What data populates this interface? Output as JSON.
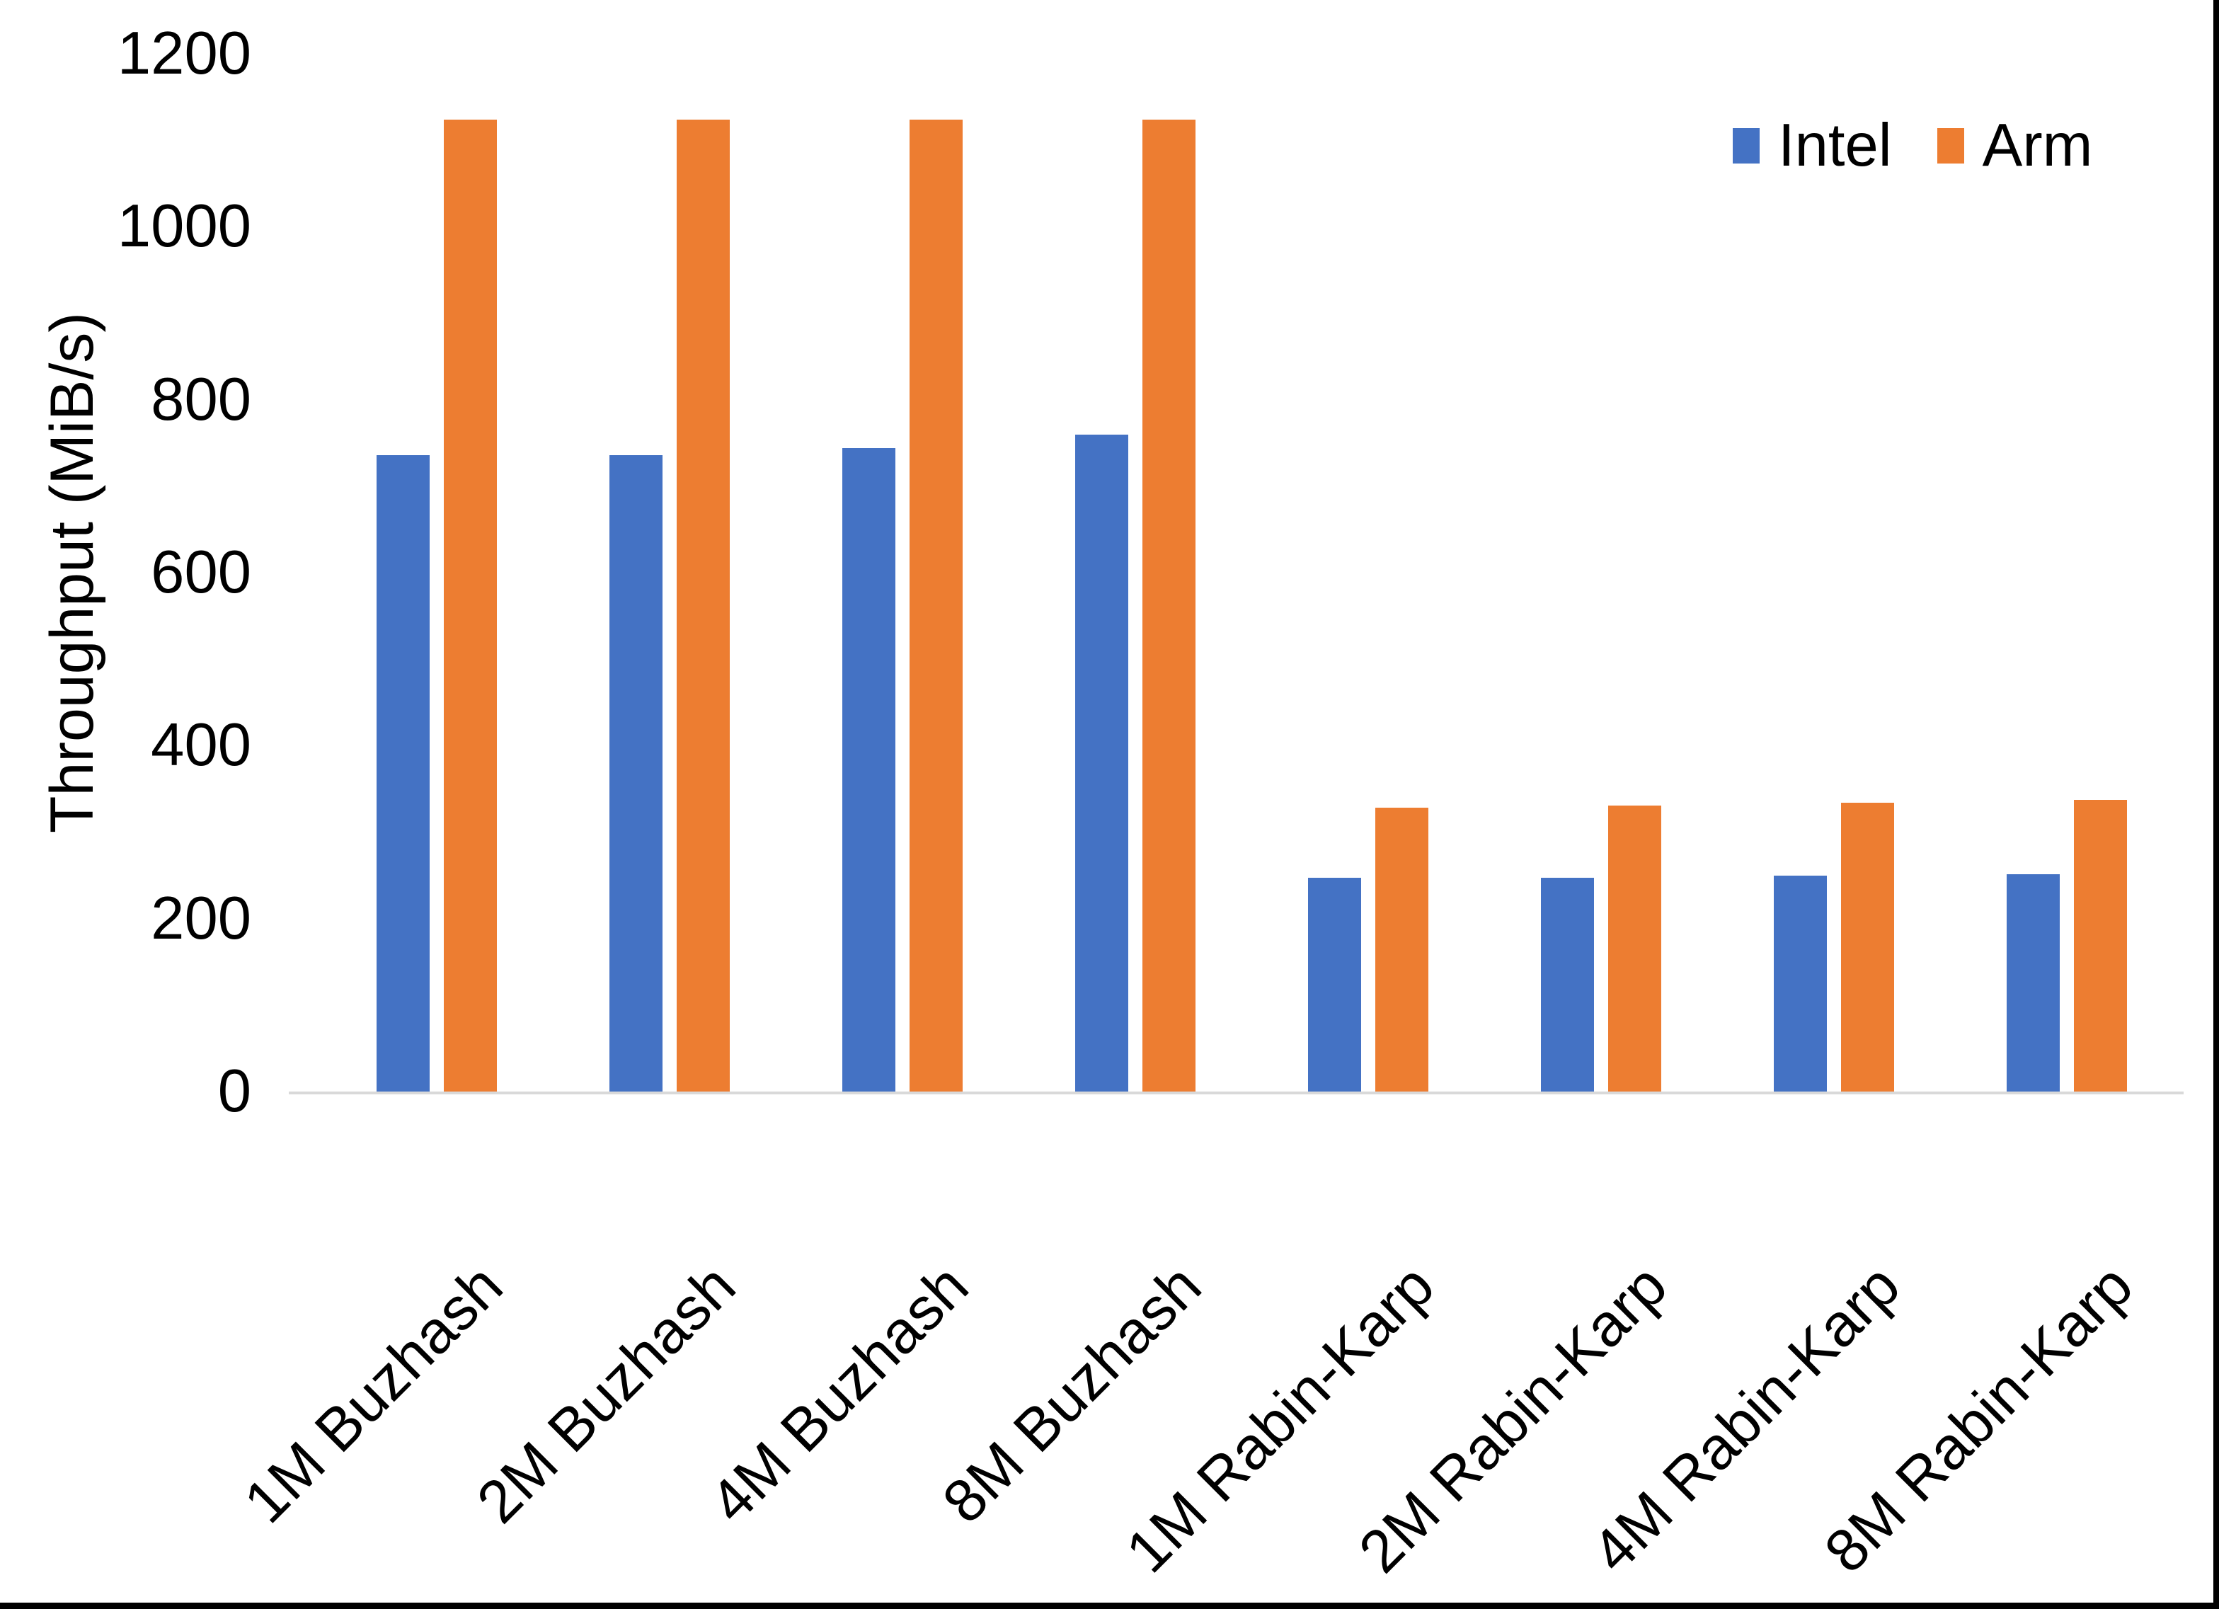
{
  "colors": {
    "intel": "#4472C4",
    "arm": "#ED7D31",
    "axis_line": "#D9D9D9",
    "text": "#000000",
    "frame": "#000000"
  },
  "chart_data": {
    "type": "bar",
    "title": "",
    "xlabel": "",
    "ylabel": "Throughput (MiB/s)",
    "ylim": [
      0,
      1200
    ],
    "yticks": [
      0,
      200,
      400,
      600,
      800,
      1000,
      1200
    ],
    "grid": false,
    "legend_position": "top-right",
    "categories": [
      "1M Buzhash",
      "2M Buzhash",
      "4M Buzhash",
      "8M Buzhash",
      "1M Rabin-Karp",
      "2M Rabin-Karp",
      "4M Rabin-Karp",
      "8M Rabin-Karp"
    ],
    "series": [
      {
        "name": "Intel",
        "color": "#4472C4",
        "values": [
          736,
          736,
          744,
          760,
          247,
          247,
          250,
          251
        ]
      },
      {
        "name": "Arm",
        "color": "#ED7D31",
        "values": [
          1124,
          1124,
          1124,
          1124,
          328,
          331,
          334,
          337
        ]
      }
    ]
  }
}
